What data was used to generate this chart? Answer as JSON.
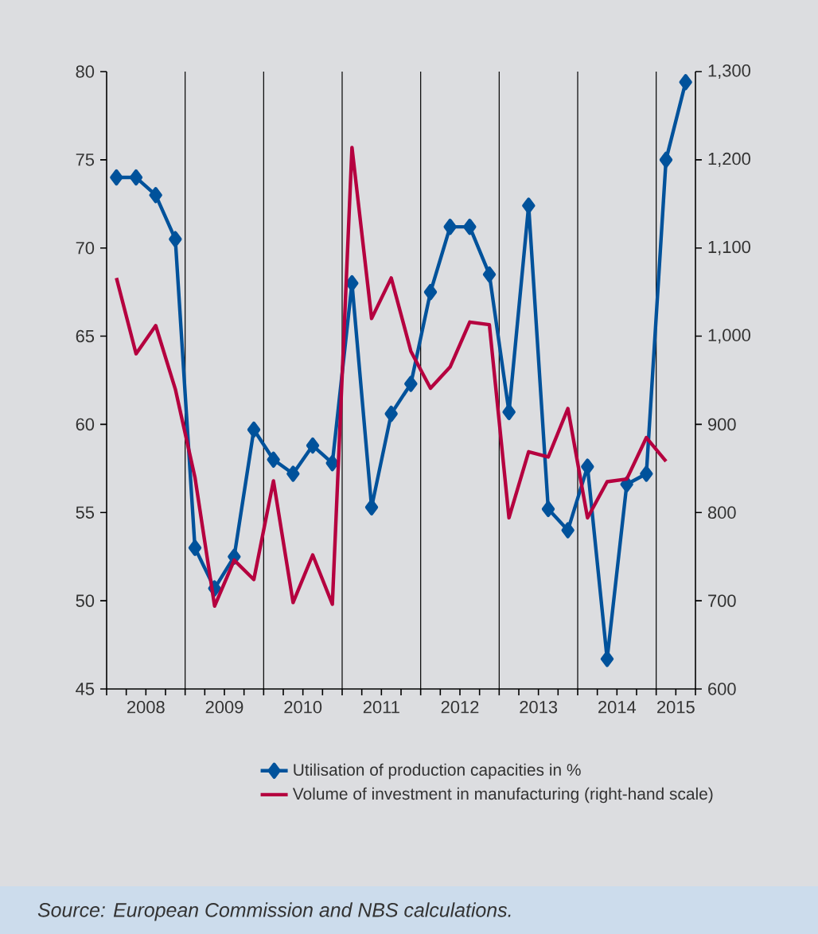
{
  "chart_data": {
    "type": "line",
    "x": [
      2008.125,
      2008.375,
      2008.625,
      2008.875,
      2009.125,
      2009.375,
      2009.625,
      2009.875,
      2010.125,
      2010.375,
      2010.625,
      2010.875,
      2011.125,
      2011.375,
      2011.625,
      2011.875,
      2012.125,
      2012.375,
      2012.625,
      2012.875,
      2013.125,
      2013.375,
      2013.625,
      2013.875,
      2014.125,
      2014.375,
      2014.625,
      2014.875,
      2015.125,
      2015.375
    ],
    "series": [
      {
        "name": "Utilisation of production capacities in %",
        "color": "#00529b",
        "marker": "diamond",
        "values": [
          74,
          74,
          73,
          70.5,
          53,
          50.7,
          52.5,
          59.7,
          58,
          57.2,
          58.8,
          57.8,
          68,
          55.3,
          60.6,
          62.3,
          67.5,
          71.2,
          71.2,
          68.5,
          60.7,
          72.4,
          55.2,
          54,
          57.6,
          46.7,
          56.6,
          57.2,
          75,
          79.4
        ]
      },
      {
        "name": "Volume of investment in manufacturing (right-hand scale)",
        "color": "#b5003f",
        "marker": "none",
        "axis": "y2",
        "values": [
          1066,
          980,
          1012,
          940,
          840,
          694,
          746,
          724,
          836,
          698,
          752,
          696,
          1214,
          1020,
          1066,
          983,
          941,
          965,
          1016,
          1013,
          794,
          869,
          863,
          918,
          794,
          835,
          838,
          885,
          858,
          null
        ]
      }
    ],
    "xlim": [
      2008,
      2015.5
    ],
    "xticks": [
      {
        "value": 2008,
        "label": null
      },
      {
        "value": 2008.25,
        "label": null
      },
      {
        "value": 2008.5,
        "label": "2008"
      },
      {
        "value": 2008.75,
        "label": null
      },
      {
        "value": 2009,
        "label": null
      },
      {
        "value": 2009.25,
        "label": null
      },
      {
        "value": 2009.5,
        "label": "2009"
      },
      {
        "value": 2009.75,
        "label": null
      },
      {
        "value": 2010,
        "label": null
      },
      {
        "value": 2010.25,
        "label": null
      },
      {
        "value": 2010.5,
        "label": "2010"
      },
      {
        "value": 2010.75,
        "label": null
      },
      {
        "value": 2011,
        "label": null
      },
      {
        "value": 2011.25,
        "label": null
      },
      {
        "value": 2011.5,
        "label": "2011"
      },
      {
        "value": 2011.75,
        "label": null
      },
      {
        "value": 2012,
        "label": null
      },
      {
        "value": 2012.25,
        "label": null
      },
      {
        "value": 2012.5,
        "label": "2012"
      },
      {
        "value": 2012.75,
        "label": null
      },
      {
        "value": 2013,
        "label": null
      },
      {
        "value": 2013.25,
        "label": null
      },
      {
        "value": 2013.5,
        "label": "2013"
      },
      {
        "value": 2013.75,
        "label": null
      },
      {
        "value": 2014,
        "label": null
      },
      {
        "value": 2014.25,
        "label": null
      },
      {
        "value": 2014.5,
        "label": "2014"
      },
      {
        "value": 2014.75,
        "label": null
      },
      {
        "value": 2015,
        "label": null
      },
      {
        "value": 2015.25,
        "label": "2015"
      },
      {
        "value": 2015.5,
        "label": null
      }
    ],
    "ylim": [
      45,
      80
    ],
    "yticks": [
      45,
      50,
      55,
      60,
      65,
      70,
      75,
      80
    ],
    "y2lim": [
      600,
      1300
    ],
    "y2ticks": [
      {
        "value": 600,
        "label": "600"
      },
      {
        "value": 700,
        "label": "700"
      },
      {
        "value": 800,
        "label": "800"
      },
      {
        "value": 900,
        "label": "900"
      },
      {
        "value": 1000,
        "label": "1,000"
      },
      {
        "value": 1100,
        "label": "1,100"
      },
      {
        "value": 1200,
        "label": "1,200"
      },
      {
        "value": 1300,
        "label": "1,300"
      }
    ],
    "grid": "x",
    "legend": "bottom",
    "line_style": "solid",
    "annotations": [
      "Source: European Commission and NBS calculations."
    ]
  }
}
